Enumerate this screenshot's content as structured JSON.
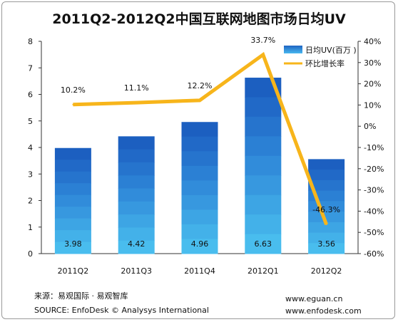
{
  "chart_data": {
    "type": "bar+line",
    "title": "2011Q2-2012Q2中国互联网地图市场日均UV",
    "categories": [
      "2011Q2",
      "2011Q3",
      "2011Q4",
      "2012Q1",
      "2012Q2"
    ],
    "series": [
      {
        "name": "日均UV(百万 )",
        "type": "bar",
        "axis": "left",
        "values": [
          3.98,
          4.42,
          4.96,
          6.63,
          3.56
        ],
        "labels": [
          "3.98",
          "4.42",
          "4.96",
          "6.63",
          "3.56"
        ],
        "color": "#2b7fd3"
      },
      {
        "name": "环比增长率",
        "type": "line",
        "axis": "right",
        "values": [
          10.2,
          11.1,
          12.2,
          33.7,
          -46.3
        ],
        "labels": [
          "10.2%",
          "11.1%",
          "12.2%",
          "33.7%",
          "-46.3%"
        ],
        "color": "#f7b51b"
      }
    ],
    "y_left": {
      "min": 0,
      "max": 8,
      "ticks": [
        "0",
        "1",
        "2",
        "3",
        "4",
        "5",
        "6",
        "7",
        "8"
      ]
    },
    "y_right": {
      "min": -60,
      "max": 40,
      "ticks": [
        "-60%",
        "-50%",
        "-40%",
        "-30%",
        "-20%",
        "-10%",
        "0%",
        "10%",
        "20%",
        "30%",
        "40%"
      ]
    },
    "legend": "top-right",
    "grid": false
  },
  "footer": {
    "source_cn": "来源：易观国际 · 易观智库",
    "source_en": "SOURCE: EnfoDesk © Analysys International",
    "url1": "www.eguan.cn",
    "url2": "www.enfodesk.com"
  }
}
